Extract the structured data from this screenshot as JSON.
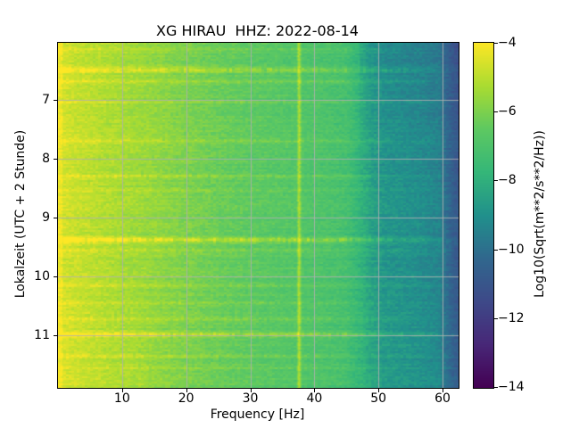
{
  "chart_data": {
    "type": "heatmap",
    "title": "XG HIRAU  HHZ: 2022-08-14",
    "xlabel": "Frequency [Hz]",
    "ylabel": "Lokalzeit (UTC + 2 Stunde)",
    "x_range_hz": [
      0,
      62.5
    ],
    "y_range_hours": [
      6.04,
      11.89
    ],
    "xticks": [
      {
        "value": 10,
        "label": "10"
      },
      {
        "value": 20,
        "label": "20"
      },
      {
        "value": 30,
        "label": "30"
      },
      {
        "value": 40,
        "label": "40"
      },
      {
        "value": 50,
        "label": "50"
      },
      {
        "value": 60,
        "label": "60"
      }
    ],
    "yticks": [
      {
        "value": 7,
        "label": "7"
      },
      {
        "value": 8,
        "label": "8"
      },
      {
        "value": 9,
        "label": "9"
      },
      {
        "value": 10,
        "label": "10"
      },
      {
        "value": 11,
        "label": "11"
      }
    ],
    "grid": true,
    "grid_color": "#b0b0b0",
    "colormap": "viridis",
    "colormap_stops": [
      [
        0.0,
        "#440154"
      ],
      [
        0.125,
        "#482878"
      ],
      [
        0.25,
        "#3e4a89"
      ],
      [
        0.375,
        "#31688e"
      ],
      [
        0.5,
        "#21918c"
      ],
      [
        0.625,
        "#35b779"
      ],
      [
        0.75,
        "#5ec962"
      ],
      [
        0.875,
        "#aadc32"
      ],
      [
        1.0,
        "#fde725"
      ]
    ],
    "colorbar": {
      "label": "Log10(Sqrt(m**2/s**2/Hz))",
      "range": [
        -14,
        -4
      ],
      "ticks": [
        {
          "value": -4,
          "label": "−4"
        },
        {
          "value": -6,
          "label": "−6"
        },
        {
          "value": -8,
          "label": "−8"
        },
        {
          "value": -10,
          "label": "−10"
        },
        {
          "value": -12,
          "label": "−12"
        },
        {
          "value": -14,
          "label": "−14"
        }
      ]
    },
    "persistent_tone_hz": 37.6,
    "spectral_profile_db": [
      [
        0.0,
        -4.5
      ],
      [
        1.0,
        -4.65
      ],
      [
        3.0,
        -4.85
      ],
      [
        6.0,
        -5.05
      ],
      [
        10.0,
        -5.3
      ],
      [
        14.0,
        -5.55
      ],
      [
        18.0,
        -5.85
      ],
      [
        22.0,
        -6.1
      ],
      [
        26.0,
        -6.35
      ],
      [
        30.0,
        -6.55
      ],
      [
        34.0,
        -6.7
      ],
      [
        37.2,
        -6.8
      ],
      [
        37.6,
        -5.15
      ],
      [
        38.1,
        -6.85
      ],
      [
        42.0,
        -7.0
      ],
      [
        45.0,
        -7.2
      ],
      [
        47.0,
        -7.8
      ],
      [
        49.0,
        -8.5
      ],
      [
        51.0,
        -8.85
      ],
      [
        54.0,
        -9.0
      ],
      [
        57.0,
        -9.15
      ],
      [
        59.5,
        -9.4
      ],
      [
        60.8,
        -10.2
      ],
      [
        61.8,
        -10.7
      ],
      [
        62.5,
        -10.9
      ]
    ],
    "event_streaks": [
      {
        "time_h": 6.15,
        "boost_db": 0.45
      },
      {
        "time_h": 6.5,
        "boost_db": 1.05
      },
      {
        "time_h": 6.7,
        "boost_db": 0.45
      },
      {
        "time_h": 7.05,
        "boost_db": 0.35
      },
      {
        "time_h": 7.7,
        "boost_db": 0.55
      },
      {
        "time_h": 8.3,
        "boost_db": 0.55
      },
      {
        "time_h": 8.55,
        "boost_db": 0.35
      },
      {
        "time_h": 9.38,
        "boost_db": 1.45
      },
      {
        "time_h": 9.55,
        "boost_db": 0.45
      },
      {
        "time_h": 10.15,
        "boost_db": 0.4
      },
      {
        "time_h": 10.45,
        "boost_db": 0.55
      },
      {
        "time_h": 10.72,
        "boost_db": 0.5
      },
      {
        "time_h": 10.99,
        "boost_db": 1.15
      },
      {
        "time_h": 11.35,
        "boost_db": 0.45
      },
      {
        "time_h": 11.55,
        "boost_db": 0.35
      }
    ]
  }
}
